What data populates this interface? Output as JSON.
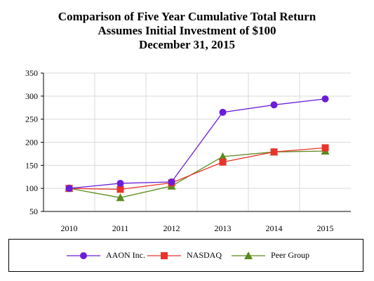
{
  "title": {
    "line1": "Comparison of Five Year Cumulative Total Return",
    "line2": "Assumes Initial Investment of $100",
    "line3": "December 31, 2015"
  },
  "chart_data": {
    "type": "line",
    "categories": [
      "2010",
      "2011",
      "2012",
      "2013",
      "2014",
      "2015"
    ],
    "ylim": [
      50,
      350
    ],
    "yticks": [
      50,
      100,
      150,
      200,
      250,
      300,
      350
    ],
    "grid": true,
    "legend_position": "bottom",
    "xlabel": "",
    "ylabel": "",
    "series": [
      {
        "name": "AAON Inc.",
        "marker": "circle",
        "color": "#6a1ed8",
        "values": [
          100,
          111,
          114,
          265,
          281,
          294
        ]
      },
      {
        "name": "NASDAQ",
        "marker": "square",
        "color": "#e8342a",
        "values": [
          100,
          98,
          112,
          157,
          179,
          188
        ]
      },
      {
        "name": "Peer Group",
        "marker": "triangle",
        "color": "#5c8a1e",
        "values": [
          100,
          80,
          105,
          169,
          179,
          181
        ]
      }
    ]
  }
}
